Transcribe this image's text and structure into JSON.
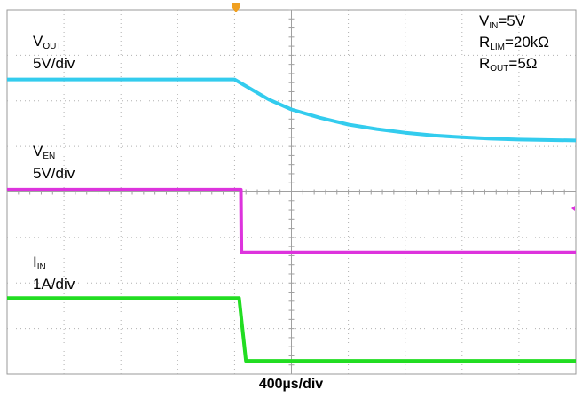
{
  "chart_data": {
    "type": "line",
    "grid": true,
    "xlabel": "400µs/div",
    "x_divisions": 10,
    "y_divisions": 8,
    "trigger_marker_color": "#f0a020",
    "series": [
      {
        "name": "VOUT",
        "scale": "5V/div",
        "color": "#33ccee",
        "label": {
          "main": "V",
          "sub": "OUT",
          "rest": "",
          "scale": "5V/div"
        },
        "points": [
          [
            0,
            0.0
          ],
          [
            4.0,
            0.0
          ],
          [
            4.3,
            -0.22
          ],
          [
            4.6,
            -0.44
          ],
          [
            5.0,
            -0.66
          ],
          [
            5.5,
            -0.84
          ],
          [
            6.0,
            -0.99
          ],
          [
            6.5,
            -1.09
          ],
          [
            7.0,
            -1.17
          ],
          [
            7.5,
            -1.23
          ],
          [
            8.0,
            -1.27
          ],
          [
            8.5,
            -1.3
          ],
          [
            9.0,
            -1.32
          ],
          [
            10.0,
            -1.34
          ]
        ]
      },
      {
        "name": "VEN",
        "scale": "5V/div",
        "color": "#dd33dd",
        "label": {
          "main": "V",
          "sub": "EN",
          "rest": "",
          "scale": "5V/div"
        },
        "points": [
          [
            0,
            0.0
          ],
          [
            4.11,
            0.0
          ],
          [
            4.12,
            -1.38
          ],
          [
            10.0,
            -1.38
          ]
        ]
      },
      {
        "name": "IIN",
        "scale": "1A/div",
        "color": "#22dd22",
        "label": {
          "main": "I",
          "sub": "IN",
          "rest": "",
          "scale": "1A/div"
        },
        "points": [
          [
            0,
            0.0
          ],
          [
            4.08,
            0.0
          ],
          [
            4.2,
            -1.38
          ],
          [
            10.0,
            -1.38
          ]
        ]
      }
    ],
    "annotation": [
      {
        "main": "V",
        "sub": "IN",
        "rest": "=5V"
      },
      {
        "main": "R",
        "sub": "LIM",
        "rest": "=20kΩ"
      },
      {
        "main": "R",
        "sub": "OUT",
        "rest": "=5Ω"
      }
    ]
  }
}
